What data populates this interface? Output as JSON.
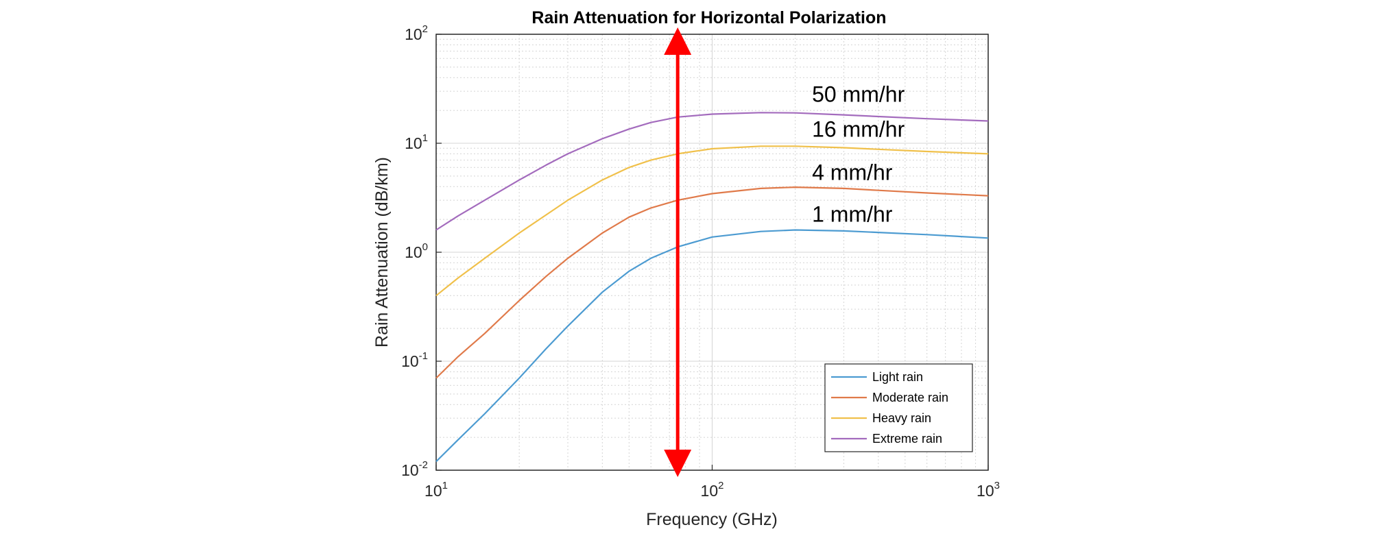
{
  "chart_data": {
    "type": "line",
    "title": "Rain Attenuation for Horizontal Polarization",
    "xlabel": "Frequency (GHz)",
    "ylabel": "Rain Attenuation (dB/km)",
    "xscale": "log",
    "yscale": "log",
    "xlim": [
      10,
      1000
    ],
    "ylim": [
      0.01,
      100
    ],
    "grid": true,
    "legend_position": "bottom-right",
    "x_ticks": [
      {
        "base": "10",
        "exp": "1"
      },
      {
        "base": "10",
        "exp": "2"
      },
      {
        "base": "10",
        "exp": "3"
      }
    ],
    "y_ticks": [
      {
        "base": "10",
        "exp": "-2"
      },
      {
        "base": "10",
        "exp": "-1"
      },
      {
        "base": "10",
        "exp": "0"
      },
      {
        "base": "10",
        "exp": "1"
      },
      {
        "base": "10",
        "exp": "2"
      }
    ],
    "x": [
      10,
      12,
      15,
      20,
      25,
      30,
      40,
      50,
      60,
      75,
      100,
      150,
      200,
      300,
      400,
      600,
      1000
    ],
    "series": [
      {
        "name": "Light rain",
        "color": "#4c9bd1",
        "values": [
          0.012,
          0.019,
          0.033,
          0.07,
          0.13,
          0.21,
          0.43,
          0.67,
          0.88,
          1.12,
          1.38,
          1.55,
          1.6,
          1.57,
          1.52,
          1.45,
          1.35
        ]
      },
      {
        "name": "Moderate rain",
        "color": "#e07a4a",
        "values": [
          0.07,
          0.11,
          0.18,
          0.36,
          0.6,
          0.88,
          1.5,
          2.1,
          2.55,
          3.0,
          3.45,
          3.85,
          3.95,
          3.85,
          3.7,
          3.5,
          3.3
        ]
      },
      {
        "name": "Heavy rain",
        "color": "#f0c04a",
        "values": [
          0.4,
          0.58,
          0.88,
          1.5,
          2.2,
          3.0,
          4.6,
          6.0,
          7.0,
          8.0,
          8.9,
          9.4,
          9.4,
          9.1,
          8.8,
          8.4,
          8.0
        ]
      },
      {
        "name": "Extreme rain",
        "color": "#a36bbd",
        "values": [
          1.6,
          2.15,
          3.0,
          4.6,
          6.3,
          8.0,
          11.0,
          13.5,
          15.5,
          17.4,
          18.5,
          19.1,
          19.0,
          18.2,
          17.6,
          16.8,
          16.0
        ]
      }
    ],
    "annotations": [
      {
        "text": "50 mm/hr",
        "x": 230,
        "y": 24
      },
      {
        "text": "16 mm/hr",
        "x": 230,
        "y": 11.5
      },
      {
        "text": "4 mm/hr",
        "x": 230,
        "y": 4.6
      },
      {
        "text": "1 mm/hr",
        "x": 230,
        "y": 1.9
      }
    ],
    "marker_line": {
      "x": 75,
      "color": "#ff0000"
    }
  }
}
